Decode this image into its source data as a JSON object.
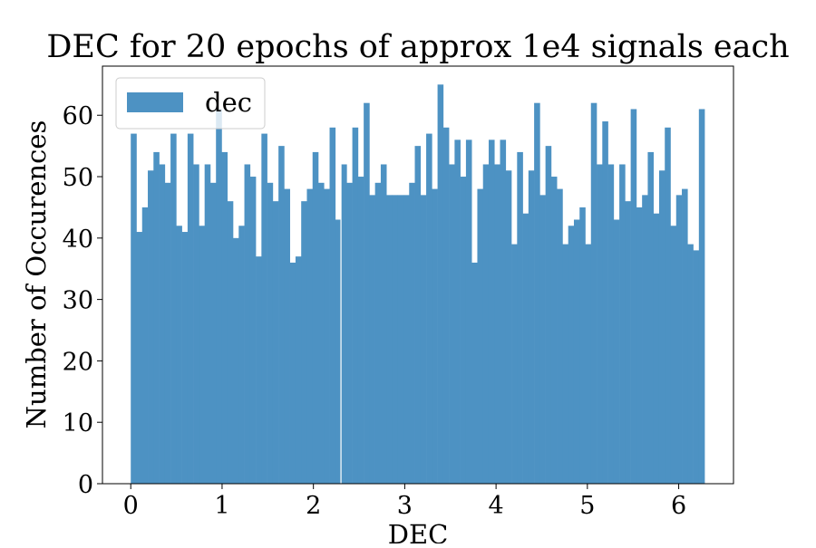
{
  "chart_data": {
    "type": "bar",
    "title": "DEC for 20 epochs of approx 1e4 signals each",
    "xlabel": "DEC",
    "ylabel": "Number of Occurences",
    "xlim": [
      -0.31,
      6.6
    ],
    "ylim": [
      0,
      68
    ],
    "x_ticks": [
      "0",
      "1",
      "2",
      "3",
      "4",
      "5",
      "6"
    ],
    "y_ticks": [
      "0",
      "10",
      "20",
      "30",
      "40",
      "50",
      "60"
    ],
    "grid": false,
    "legend": {
      "position": "top-left",
      "entries": [
        "dec"
      ]
    },
    "bin_range": [
      0,
      6.2832
    ],
    "series": [
      {
        "name": "dec",
        "color": "#4d92c3",
        "values": [
          57,
          41,
          45,
          51,
          54,
          52,
          49,
          57,
          42,
          41,
          57,
          52,
          42,
          52,
          49,
          61,
          54,
          46,
          40,
          42,
          52,
          50,
          37,
          57,
          49,
          46,
          55,
          48,
          36,
          37,
          46,
          48,
          54,
          49,
          48,
          58,
          43,
          52,
          49,
          58,
          50,
          62,
          47,
          49,
          52,
          47,
          47,
          47,
          47,
          49,
          55,
          47,
          57,
          48,
          65,
          58,
          52,
          56,
          50,
          56,
          36,
          48,
          52,
          56,
          52,
          56,
          51,
          39,
          54,
          44,
          51,
          62,
          47,
          55,
          50,
          48,
          39,
          42,
          43,
          45,
          39,
          62,
          52,
          59,
          52,
          43,
          52,
          46,
          61,
          45,
          47,
          54,
          44,
          51,
          58,
          42,
          47,
          48,
          39,
          38,
          61
        ]
      }
    ],
    "gap_bins": [
      37
    ]
  }
}
